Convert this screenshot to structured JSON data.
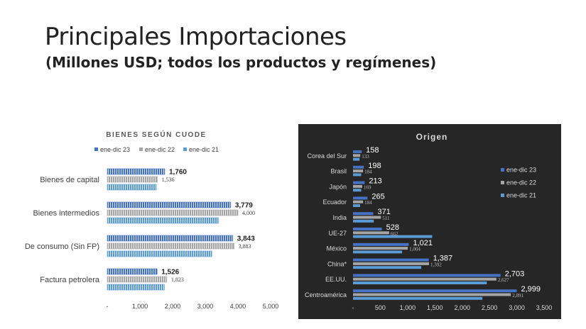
{
  "slide": {
    "title": "Principales Importaciones",
    "subtitle": "(Millones USD; todos los productos y regímenes)"
  },
  "chart_data": [
    {
      "type": "bar",
      "orientation": "horizontal",
      "title": "BIENES SEGÚN CUODE",
      "categories": [
        "Bienes de capital",
        "Bienes intermedios",
        "De consumo (Sin FP)",
        "Factura petrolera"
      ],
      "series": [
        {
          "name": "ene-dic 23",
          "values": [
            1760,
            3779,
            3843,
            1526
          ],
          "labels": [
            "1,760",
            "3,779",
            "3,843",
            "1,526"
          ],
          "color": "#4472c4",
          "pattern": "striped"
        },
        {
          "name": "ene-dic 22",
          "values": [
            1536,
            4000,
            3883,
            1823
          ],
          "labels": [
            "1,536",
            "4,000",
            "3,883",
            "1,823"
          ],
          "color": "#a5a5a5",
          "pattern": "striped"
        },
        {
          "name": "ene-dic 21",
          "values": [
            1500,
            3400,
            3200,
            1750
          ],
          "labels": [
            "",
            "",
            "",
            ""
          ],
          "color": "#5b9bd5",
          "pattern": "striped"
        }
      ],
      "xlim": [
        0,
        5000
      ],
      "xticks": [
        "-",
        "1,000",
        "2,000",
        "3,000",
        "4,000",
        "5,000"
      ],
      "legend_position": "top",
      "grid": false
    },
    {
      "type": "bar",
      "orientation": "horizontal",
      "title": "Origen",
      "categories": [
        "Corea del Sur",
        "Brasil",
        "Japón",
        "Ecuador",
        "India",
        "UE-27",
        "México",
        "China*",
        "EE.UU.",
        "Centroamérica"
      ],
      "series": [
        {
          "name": "ene-dic 23",
          "values": [
            158,
            198,
            213,
            265,
            371,
            528,
            1021,
            1387,
            2703,
            2999
          ],
          "labels": [
            "158",
            "198",
            "213",
            "265",
            "371",
            "528",
            "1,021",
            "1,387",
            "2,703",
            "2,999"
          ],
          "color": "#4472c4"
        },
        {
          "name": "ene-dic 22",
          "values": [
            133,
            184,
            169,
            184,
            511,
            662,
            1004,
            1392,
            2627,
            2891
          ],
          "labels": [
            "133",
            "184",
            "169",
            "184",
            "511",
            "662",
            "1,004",
            "1,392",
            "2,627",
            "2,891"
          ],
          "color": "#a5a5a5"
        },
        {
          "name": "ene-dic 21",
          "values": [
            120,
            150,
            150,
            130,
            380,
            1450,
            900,
            1250,
            2450,
            2370
          ],
          "labels": [
            "",
            "",
            "",
            "",
            "",
            "",
            "",
            "",
            "",
            ""
          ],
          "color": "#5b9bd5"
        }
      ],
      "xlim": [
        0,
        3500
      ],
      "xticks": [
        "-",
        "500",
        "1,000",
        "1,500",
        "2,000",
        "2,500",
        "3,000",
        "3,500"
      ],
      "legend_position": "right",
      "background": "#262626",
      "grid": false
    }
  ]
}
